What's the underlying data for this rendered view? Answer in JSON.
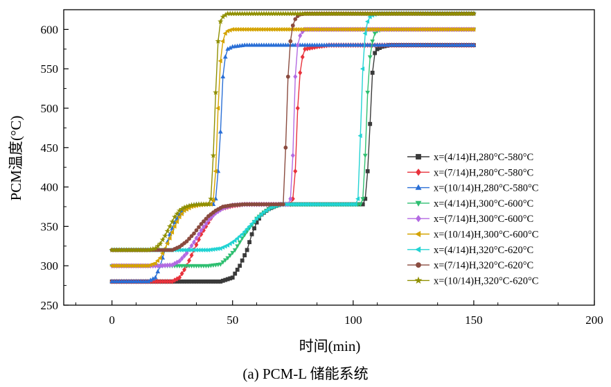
{
  "chart_data": {
    "type": "line",
    "title": "",
    "xlabel": "时间(min)",
    "ylabel": "PCM温度(°C)",
    "caption": "(a) PCM-L 储能系统",
    "xlim": [
      -20,
      200
    ],
    "ylim": [
      250,
      625
    ],
    "xticks": [
      0,
      50,
      100,
      150,
      200
    ],
    "yticks": [
      250,
      300,
      350,
      400,
      450,
      500,
      550,
      600
    ],
    "grid": false,
    "legend_position": "right",
    "series": [
      {
        "name": "x=(4/14)H,280°C-580°C",
        "color": "#3a3a3a",
        "marker": "square",
        "t0": 280,
        "t1": 580,
        "phase_start": 104,
        "x": [
          0,
          20,
          45,
          50,
          53,
          56,
          58,
          60,
          62,
          65,
          68,
          70,
          75,
          80,
          85,
          90,
          95,
          100,
          104,
          105,
          106,
          107,
          108,
          109,
          110,
          112,
          115,
          120,
          150
        ],
        "y": [
          280,
          280,
          280,
          285,
          300,
          320,
          340,
          355,
          365,
          372,
          376,
          378,
          378,
          378,
          378,
          378,
          378,
          378,
          378,
          385,
          420,
          480,
          545,
          570,
          575,
          578,
          580,
          580,
          580
        ]
      },
      {
        "name": "x=(7/14)H,280°C-580°C",
        "color": "#e8323c",
        "marker": "diamond",
        "t0": 280,
        "t1": 580,
        "phase_start": 74,
        "x": [
          0,
          15,
          25,
          28,
          31,
          34,
          37,
          40,
          42,
          45,
          50,
          55,
          60,
          65,
          70,
          72,
          74,
          75,
          76,
          77,
          78,
          79,
          80,
          85,
          90,
          150
        ],
        "y": [
          280,
          280,
          280,
          285,
          300,
          320,
          340,
          355,
          365,
          372,
          376,
          378,
          378,
          378,
          378,
          378,
          378,
          385,
          420,
          500,
          545,
          565,
          575,
          578,
          580,
          580
        ]
      },
      {
        "name": "x=(10/14)H,280°C-580°C",
        "color": "#2a6fd6",
        "marker": "triangle",
        "t0": 280,
        "t1": 580,
        "phase_start": 42,
        "x": [
          0,
          15,
          18,
          20,
          22,
          24,
          26,
          28,
          30,
          32,
          35,
          38,
          40,
          42,
          43,
          44,
          45,
          46,
          47,
          48,
          50,
          55,
          150
        ],
        "y": [
          280,
          280,
          285,
          300,
          320,
          340,
          355,
          365,
          372,
          376,
          378,
          378,
          378,
          378,
          385,
          420,
          470,
          540,
          565,
          575,
          578,
          580,
          580
        ]
      },
      {
        "name": "x=(4/14)H,300°C-600°C",
        "color": "#2fbf71",
        "marker": "triangle-down",
        "t0": 300,
        "t1": 600,
        "phase_start": 104,
        "x": [
          0,
          30,
          40,
          45,
          48,
          51,
          54,
          57,
          60,
          63,
          66,
          70,
          75,
          80,
          85,
          90,
          95,
          100,
          103,
          104,
          105,
          106,
          107,
          108,
          109,
          110,
          112,
          115,
          120,
          150
        ],
        "y": [
          300,
          300,
          300,
          302,
          310,
          320,
          335,
          348,
          360,
          368,
          374,
          378,
          378,
          378,
          378,
          378,
          378,
          378,
          378,
          385,
          440,
          520,
          565,
          585,
          595,
          598,
          600,
          600,
          600,
          600
        ]
      },
      {
        "name": "x=(7/14)H,300°C-600°C",
        "color": "#b36ae2",
        "marker": "diamond",
        "t0": 300,
        "t1": 600,
        "phase_start": 74,
        "x": [
          0,
          20,
          25,
          28,
          31,
          34,
          37,
          40,
          43,
          46,
          50,
          55,
          60,
          65,
          70,
          73,
          74,
          75,
          76,
          77,
          78,
          79,
          80,
          85,
          150
        ],
        "y": [
          300,
          300,
          301,
          306,
          316,
          330,
          345,
          358,
          367,
          373,
          377,
          378,
          378,
          378,
          378,
          378,
          385,
          440,
          540,
          580,
          592,
          597,
          600,
          600,
          600
        ]
      },
      {
        "name": "x=(10/14)H,300°C-600°C",
        "color": "#d4a300",
        "marker": "triangle-left",
        "t0": 300,
        "t1": 600,
        "phase_start": 42,
        "x": [
          0,
          15,
          18,
          20,
          22,
          24,
          26,
          28,
          30,
          33,
          36,
          40,
          41,
          42,
          43,
          44,
          45,
          46,
          47,
          48,
          50,
          55,
          150
        ],
        "y": [
          300,
          300,
          303,
          310,
          322,
          335,
          350,
          362,
          370,
          375,
          377,
          378,
          378,
          383,
          420,
          500,
          560,
          585,
          595,
          598,
          600,
          600,
          600
        ]
      },
      {
        "name": "x=(4/14)H,320°C-620°C",
        "color": "#22d3d3",
        "marker": "triangle-left",
        "t0": 320,
        "t1": 620,
        "phase_start": 102,
        "x": [
          0,
          30,
          40,
          45,
          48,
          51,
          54,
          57,
          60,
          63,
          66,
          70,
          75,
          80,
          85,
          90,
          95,
          100,
          101,
          102,
          103,
          104,
          105,
          106,
          107,
          108,
          110,
          115,
          150
        ],
        "y": [
          320,
          320,
          320,
          322,
          326,
          332,
          340,
          350,
          360,
          368,
          374,
          378,
          378,
          378,
          378,
          378,
          378,
          378,
          378,
          385,
          465,
          550,
          595,
          610,
          616,
          618,
          620,
          620,
          620
        ]
      },
      {
        "name": "x=(7/14)H,320°C-620°C",
        "color": "#8a4b3f",
        "marker": "circle",
        "t0": 320,
        "t1": 620,
        "phase_start": 71,
        "x": [
          0,
          20,
          25,
          28,
          31,
          34,
          37,
          40,
          43,
          46,
          50,
          55,
          60,
          65,
          70,
          71,
          72,
          73,
          74,
          75,
          76,
          77,
          78,
          80,
          150
        ],
        "y": [
          320,
          320,
          320,
          324,
          331,
          341,
          353,
          363,
          370,
          375,
          377,
          378,
          378,
          378,
          378,
          378,
          450,
          540,
          585,
          605,
          613,
          617,
          619,
          620,
          620
        ]
      },
      {
        "name": "x=(10/14)H,320°C-620°C",
        "color": "#8f8f00",
        "marker": "star",
        "t0": 320,
        "t1": 620,
        "phase_start": 40,
        "x": [
          0,
          15,
          18,
          20,
          22,
          24,
          26,
          28,
          30,
          33,
          36,
          39,
          40,
          41,
          42,
          43,
          44,
          45,
          46,
          47,
          48,
          50,
          55,
          150
        ],
        "y": [
          320,
          320,
          322,
          328,
          338,
          350,
          362,
          370,
          374,
          377,
          378,
          378,
          378,
          385,
          440,
          520,
          585,
          610,
          616,
          618,
          620,
          620,
          620,
          620
        ]
      }
    ]
  }
}
